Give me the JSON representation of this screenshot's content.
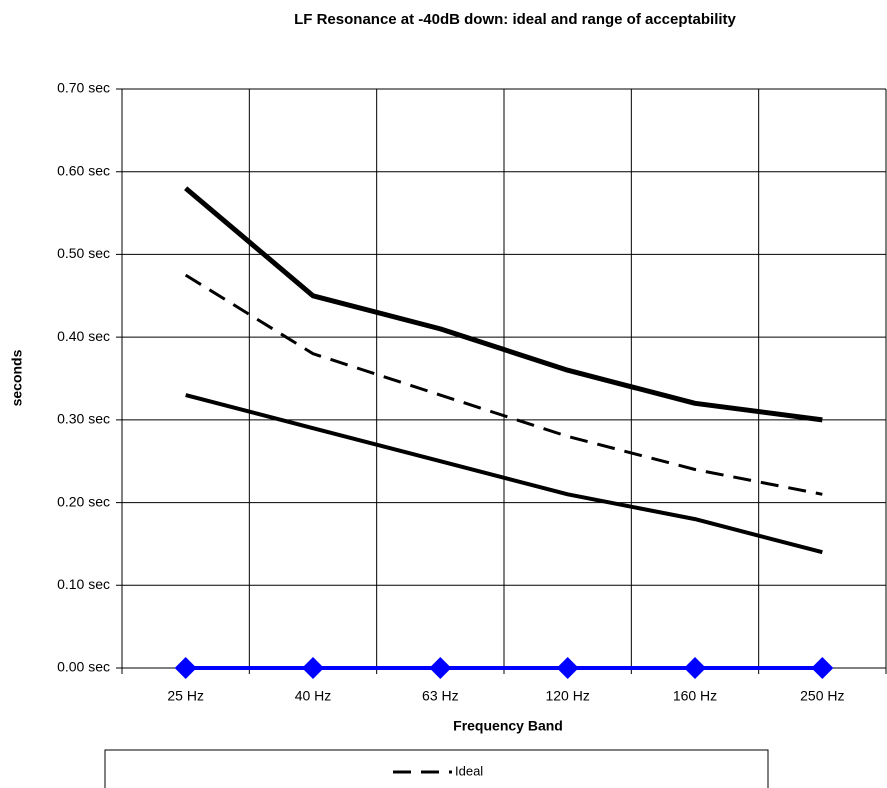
{
  "chart_data": {
    "type": "line",
    "title": "LF Resonance at -40dB down: ideal and range of acceptability",
    "x_label": "Frequency Band",
    "y_label": "seconds",
    "categories": [
      "25 Hz",
      "40 Hz",
      "63 Hz",
      "120 Hz",
      "160 Hz",
      "250 Hz"
    ],
    "series": [
      {
        "color": "#000000",
        "style": "solid",
        "values": [
          0.58,
          0.45,
          0.41,
          0.36,
          0.32,
          0.3
        ]
      },
      {
        "name": "Ideal",
        "color": "#000000",
        "style": "dashed",
        "values": [
          0.475,
          0.38,
          0.33,
          0.28,
          0.24,
          0.21
        ]
      },
      {
        "color": "#000000",
        "style": "solid",
        "values": [
          0.33,
          0.29,
          0.25,
          0.21,
          0.18,
          0.14
        ]
      },
      {
        "color": "#0000ff",
        "style": "solid",
        "marker": "diamond",
        "values": [
          0,
          0,
          0,
          0,
          0,
          0
        ]
      }
    ],
    "ylim": [
      0,
      0.7
    ],
    "yticks": [
      {
        "value": 0,
        "label": "0.00 sec"
      },
      {
        "value": 0.1,
        "label": "0.10 sec"
      },
      {
        "value": 0.2,
        "label": "0.20 sec"
      },
      {
        "value": 0.3,
        "label": "0.30 sec"
      },
      {
        "value": 0.4,
        "label": "0.40 sec"
      },
      {
        "value": 0.5,
        "label": "0.50 sec"
      },
      {
        "value": 0.6,
        "label": "0.60 sec"
      },
      {
        "value": 0.7,
        "label": "0.70 sec"
      }
    ],
    "grid": true,
    "legend": "bottom"
  }
}
